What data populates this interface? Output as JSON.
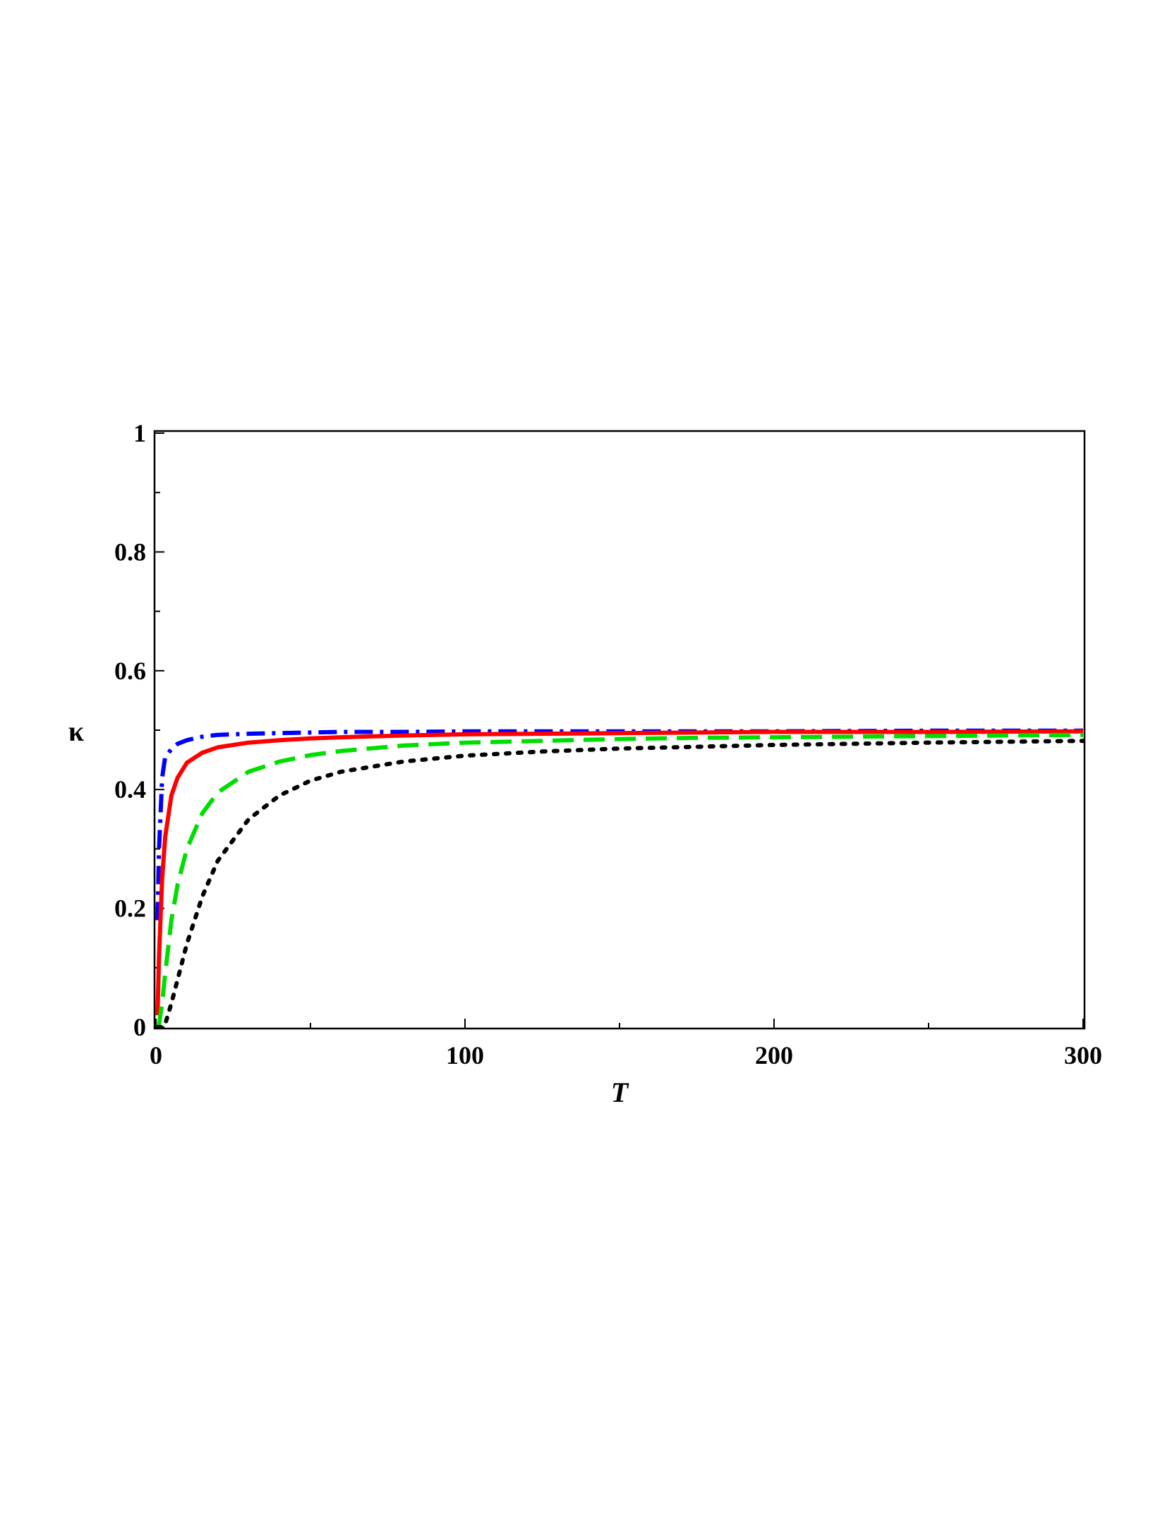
{
  "chart_data": {
    "type": "line",
    "title": "",
    "xlabel": "T",
    "ylabel": "κ",
    "xlim": [
      0,
      300
    ],
    "ylim": [
      0,
      1
    ],
    "x_ticks": [
      0,
      100,
      200,
      300
    ],
    "x_tick_labels": [
      "0",
      "100",
      "200",
      "300"
    ],
    "y_ticks": [
      0,
      0.2,
      0.4,
      0.6,
      0.8,
      1
    ],
    "y_tick_labels": [
      "0",
      "0.2",
      "0.4",
      "0.6",
      "0.8",
      "1"
    ],
    "grid": false,
    "legend": "none",
    "x": [
      0.5,
      1,
      2,
      3,
      5,
      7,
      10,
      15,
      20,
      30,
      40,
      50,
      60,
      80,
      100,
      125,
      150,
      175,
      200,
      250,
      300
    ],
    "series": [
      {
        "color": "#0000ff",
        "dash": "dash-dot",
        "values": [
          0.18,
          0.3,
          0.42,
          0.455,
          0.468,
          0.477,
          0.483,
          0.489,
          0.492,
          0.494,
          0.495,
          0.496,
          0.497,
          0.497,
          0.498,
          0.498,
          0.498,
          0.498,
          0.498,
          0.499,
          0.499
        ]
      },
      {
        "color": "#ff0000",
        "dash": "solid",
        "values": [
          0.02,
          0.12,
          0.25,
          0.32,
          0.39,
          0.42,
          0.445,
          0.462,
          0.471,
          0.479,
          0.483,
          0.486,
          0.488,
          0.491,
          0.493,
          0.494,
          0.495,
          0.496,
          0.497,
          0.497,
          0.498
        ]
      },
      {
        "color": "#00dd00",
        "dash": "dash",
        "values": [
          0,
          0.005,
          0.04,
          0.09,
          0.18,
          0.24,
          0.3,
          0.36,
          0.395,
          0.43,
          0.447,
          0.458,
          0.465,
          0.474,
          0.479,
          0.482,
          0.485,
          0.487,
          0.488,
          0.49,
          0.492
        ]
      },
      {
        "color": "#000000",
        "dash": "dot",
        "values": [
          0,
          0,
          0,
          0.005,
          0.04,
          0.08,
          0.14,
          0.22,
          0.28,
          0.35,
          0.39,
          0.415,
          0.43,
          0.447,
          0.457,
          0.464,
          0.469,
          0.472,
          0.475,
          0.479,
          0.482
        ]
      }
    ]
  }
}
